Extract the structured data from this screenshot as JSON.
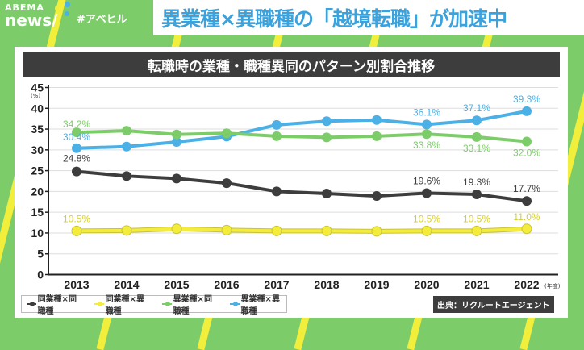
{
  "logo": {
    "brand": "ABEMA",
    "sub": "news/"
  },
  "hashtag": "#アベヒル",
  "headline": "異業種×異職種の「越境転職」が加速中",
  "chart_data": {
    "type": "line",
    "title": "転職時の業種・職種異同のパターン別割合推移",
    "ylabel": "(%)",
    "xlabel": "(年度)",
    "ylim": [
      0,
      45
    ],
    "yticks": [
      0,
      5,
      10,
      15,
      20,
      25,
      30,
      35,
      40,
      45
    ],
    "grid": true,
    "legend_position": "bottom-left",
    "categories": [
      "2013",
      "2014",
      "2015",
      "2016",
      "2017",
      "2018",
      "2019",
      "2020",
      "2021",
      "2022"
    ],
    "series": [
      {
        "name": "同業種×同職種",
        "color": "#3d3d3d",
        "values": [
          24.8,
          23.7,
          23.1,
          22.0,
          20.0,
          19.5,
          18.9,
          19.6,
          19.3,
          17.7
        ],
        "labels": {
          "0": "24.8%",
          "7": "19.6%",
          "8": "19.3%",
          "9": "17.7%"
        }
      },
      {
        "name": "同業種×異職種",
        "color": "#f3ec3a",
        "values": [
          10.5,
          10.6,
          11.0,
          10.7,
          10.5,
          10.5,
          10.4,
          10.5,
          10.5,
          11.0
        ],
        "labels": {
          "0": "10.5%",
          "7": "10.5%",
          "8": "10.5%",
          "9": "11.0%"
        }
      },
      {
        "name": "異業種×同職種",
        "color": "#7dcc6a",
        "values": [
          34.2,
          34.6,
          33.7,
          34.0,
          33.3,
          33.0,
          33.3,
          33.8,
          33.1,
          32.0
        ],
        "labels": {
          "0": "34.2%",
          "7": "33.8%",
          "8": "33.1%",
          "9": "32.0%"
        }
      },
      {
        "name": "異業種×異職種",
        "color": "#4bb0e6",
        "values": [
          30.4,
          30.8,
          31.9,
          33.2,
          36.0,
          36.9,
          37.2,
          36.1,
          37.1,
          39.3
        ],
        "labels": {
          "0": "30.4%",
          "7": "36.1%",
          "8": "37.1%",
          "9": "39.3%"
        }
      }
    ],
    "source": "出典：リクルートエージェント"
  }
}
